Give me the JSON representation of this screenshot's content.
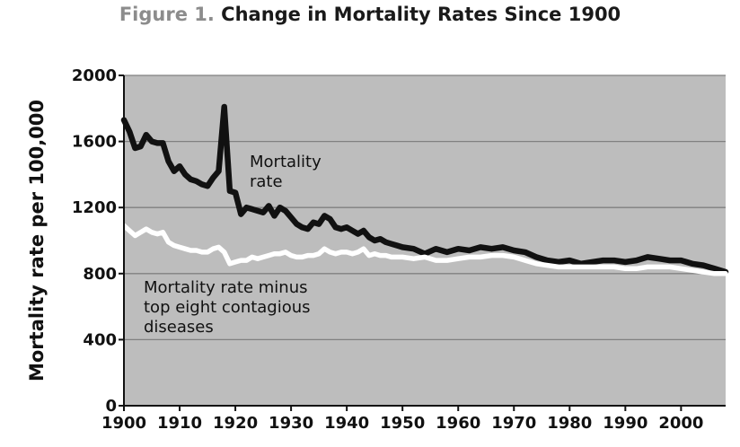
{
  "figure": {
    "label": "Figure 1.",
    "title": "Change in Mortality Rates Since 1900"
  },
  "colors": {
    "plot_background": "#bdbdbd",
    "gridline": "#808080",
    "mortality_line": "#111111",
    "minus_line": "#ffffff"
  },
  "chart_data": {
    "type": "line",
    "title": "Change in Mortality Rates Since 1900",
    "xlabel": "",
    "ylabel": "Mortality rate per 100,000",
    "xlim": [
      1900,
      2008
    ],
    "ylim": [
      0,
      2000
    ],
    "xticks": [
      1900,
      1910,
      1920,
      1930,
      1940,
      1950,
      1960,
      1970,
      1980,
      1990,
      2000
    ],
    "yticks": [
      0,
      400,
      800,
      1200,
      1600,
      2000
    ],
    "grid": true,
    "series": [
      {
        "name": "Mortality rate",
        "label_lines": [
          "Mortality",
          "rate"
        ],
        "color": "#111111",
        "x": [
          1900,
          1901,
          1902,
          1903,
          1904,
          1905,
          1906,
          1907,
          1908,
          1909,
          1910,
          1911,
          1912,
          1913,
          1914,
          1915,
          1916,
          1917,
          1918,
          1919,
          1920,
          1921,
          1922,
          1923,
          1924,
          1925,
          1926,
          1927,
          1928,
          1929,
          1930,
          1931,
          1932,
          1933,
          1934,
          1935,
          1936,
          1937,
          1938,
          1939,
          1940,
          1941,
          1942,
          1943,
          1944,
          1945,
          1946,
          1947,
          1948,
          1949,
          1950,
          1952,
          1954,
          1956,
          1958,
          1960,
          1962,
          1964,
          1966,
          1968,
          1970,
          1972,
          1974,
          1976,
          1978,
          1980,
          1982,
          1984,
          1986,
          1988,
          1990,
          1992,
          1994,
          1996,
          1998,
          2000,
          2002,
          2004,
          2006,
          2008
        ],
        "values": [
          1730,
          1660,
          1560,
          1570,
          1640,
          1600,
          1590,
          1590,
          1480,
          1420,
          1450,
          1400,
          1370,
          1360,
          1340,
          1330,
          1380,
          1420,
          1810,
          1300,
          1290,
          1160,
          1200,
          1190,
          1180,
          1170,
          1210,
          1150,
          1200,
          1180,
          1140,
          1100,
          1080,
          1070,
          1110,
          1100,
          1150,
          1130,
          1080,
          1070,
          1080,
          1060,
          1040,
          1060,
          1020,
          1000,
          1010,
          990,
          980,
          970,
          960,
          950,
          920,
          950,
          930,
          950,
          940,
          960,
          950,
          960,
          940,
          930,
          900,
          880,
          870,
          880,
          860,
          870,
          880,
          880,
          870,
          880,
          900,
          890,
          880,
          880,
          860,
          850,
          830,
          810
        ]
      },
      {
        "name": "Mortality rate minus top eight contagious diseases",
        "label_lines": [
          "Mortality rate minus",
          "top eight contagious",
          "diseases"
        ],
        "color": "#ffffff",
        "x": [
          1900,
          1901,
          1902,
          1903,
          1904,
          1905,
          1906,
          1907,
          1908,
          1909,
          1910,
          1911,
          1912,
          1913,
          1914,
          1915,
          1916,
          1917,
          1918,
          1919,
          1920,
          1921,
          1922,
          1923,
          1924,
          1925,
          1926,
          1927,
          1928,
          1929,
          1930,
          1931,
          1932,
          1933,
          1934,
          1935,
          1936,
          1937,
          1938,
          1939,
          1940,
          1941,
          1942,
          1943,
          1944,
          1945,
          1946,
          1947,
          1948,
          1950,
          1952,
          1954,
          1956,
          1958,
          1960,
          1962,
          1964,
          1966,
          1968,
          1970,
          1972,
          1974,
          1976,
          1978,
          1980,
          1982,
          1984,
          1986,
          1988,
          1990,
          1992,
          1994,
          1996,
          1998,
          2000,
          2002,
          2004,
          2006,
          2008
        ],
        "values": [
          1090,
          1060,
          1030,
          1050,
          1070,
          1050,
          1040,
          1050,
          990,
          970,
          960,
          950,
          940,
          940,
          930,
          930,
          950,
          960,
          930,
          860,
          870,
          880,
          880,
          900,
          890,
          900,
          910,
          920,
          920,
          930,
          910,
          900,
          900,
          910,
          910,
          920,
          950,
          930,
          920,
          930,
          930,
          920,
          930,
          950,
          910,
          920,
          910,
          910,
          900,
          900,
          890,
          900,
          880,
          880,
          890,
          900,
          900,
          910,
          910,
          900,
          880,
          860,
          850,
          840,
          840,
          840,
          840,
          840,
          840,
          830,
          830,
          840,
          840,
          840,
          830,
          820,
          810,
          800,
          800
        ]
      }
    ]
  }
}
